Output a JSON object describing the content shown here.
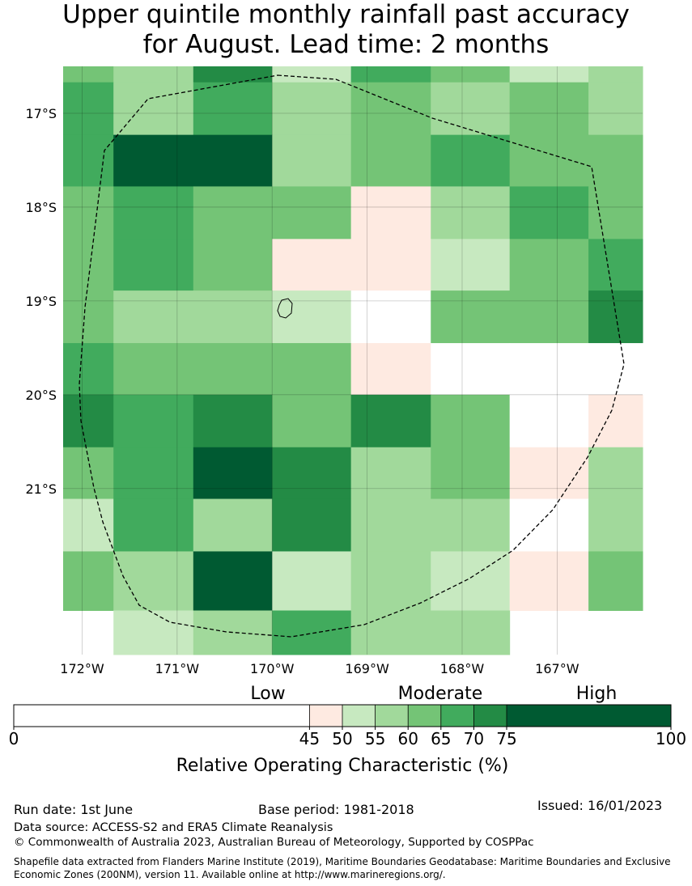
{
  "header": {
    "title_line1": "Upper quintile monthly rainfall past accuracy",
    "title_line2": "for August. Lead time: 2 months"
  },
  "chart_data": {
    "type": "heatmap",
    "title": "Upper quintile monthly rainfall past accuracy for August. Lead time: 2 months",
    "x_ticks": [
      {
        "lon": -172,
        "label": "172°W"
      },
      {
        "lon": -171,
        "label": "171°W"
      },
      {
        "lon": -170,
        "label": "170°W"
      },
      {
        "lon": -169,
        "label": "169°W"
      },
      {
        "lon": -168,
        "label": "168°W"
      },
      {
        "lon": -167,
        "label": "167°W"
      }
    ],
    "y_ticks": [
      {
        "lat": -17,
        "label": "17°S"
      },
      {
        "lat": -18,
        "label": "18°S"
      },
      {
        "lat": -19,
        "label": "19°S"
      },
      {
        "lat": -20,
        "label": "20°S"
      },
      {
        "lat": -21,
        "label": "21°S"
      }
    ],
    "xlim": [
      -172.2,
      -166.1
    ],
    "ylim": [
      -22.77,
      -16.5
    ],
    "grid": true,
    "lon_edges": [
      -172.2,
      -171.67,
      -170.83,
      -170.0,
      -169.17,
      -168.33,
      -167.5,
      -166.67,
      -166.1
    ],
    "lat_edges": [
      -16.5,
      -16.67,
      -17.23,
      -17.78,
      -18.34,
      -18.89,
      -19.45,
      -20.0,
      -20.56,
      -21.11,
      -21.67,
      -22.3,
      -22.77
    ],
    "roc_values": [
      [
        62,
        57,
        72,
        52,
        68,
        62,
        52,
        57
      ],
      [
        68,
        57,
        68,
        57,
        62,
        57,
        62,
        57
      ],
      [
        68,
        78,
        78,
        57,
        62,
        68,
        62,
        62
      ],
      [
        62,
        68,
        62,
        62,
        47,
        57,
        68,
        62
      ],
      [
        62,
        68,
        62,
        47,
        47,
        52,
        62,
        68
      ],
      [
        62,
        57,
        57,
        52,
        30,
        62,
        62,
        72
      ],
      [
        68,
        62,
        62,
        62,
        47,
        30,
        30,
        30
      ],
      [
        72,
        68,
        72,
        62,
        72,
        62,
        30,
        47
      ],
      [
        62,
        68,
        78,
        72,
        57,
        62,
        47,
        57
      ],
      [
        52,
        68,
        57,
        72,
        57,
        57,
        30,
        57
      ],
      [
        62,
        57,
        78,
        52,
        57,
        52,
        47,
        62
      ],
      [
        null,
        52,
        57,
        68,
        57,
        57,
        null,
        null
      ]
    ],
    "colorbar": {
      "ticks": [
        0,
        45,
        50,
        55,
        60,
        65,
        70,
        75,
        100
      ],
      "colors": [
        "#ffffff",
        "#feeae1",
        "#c7e9c0",
        "#a1d99b",
        "#74c476",
        "#41ab5d",
        "#238b45",
        "#005a32"
      ],
      "category_labels": [
        "Low",
        "Moderate",
        "High"
      ],
      "label": "Relative Operating Characteristic (%)"
    }
  },
  "footer": {
    "run_date": "Run date: 1st June",
    "base_period": "Base period: 1981-2018",
    "issued": "Issued: 16/01/2023",
    "data_source": "Data source: ACCESS-S2 and ERA5 Climate Reanalysis",
    "copyright": "© Commonwealth of Australia 2023, Australian Bureau of Meteorology, Supported by COSPPac",
    "shapefile": "Shapefile data extracted from Flanders Marine Institute (2019), Maritime Boundaries Geodatabase: Maritime Boundaries and Exclusive Economic Zones (200NM), version 11. Available online at http://www.marineregions.org/."
  }
}
